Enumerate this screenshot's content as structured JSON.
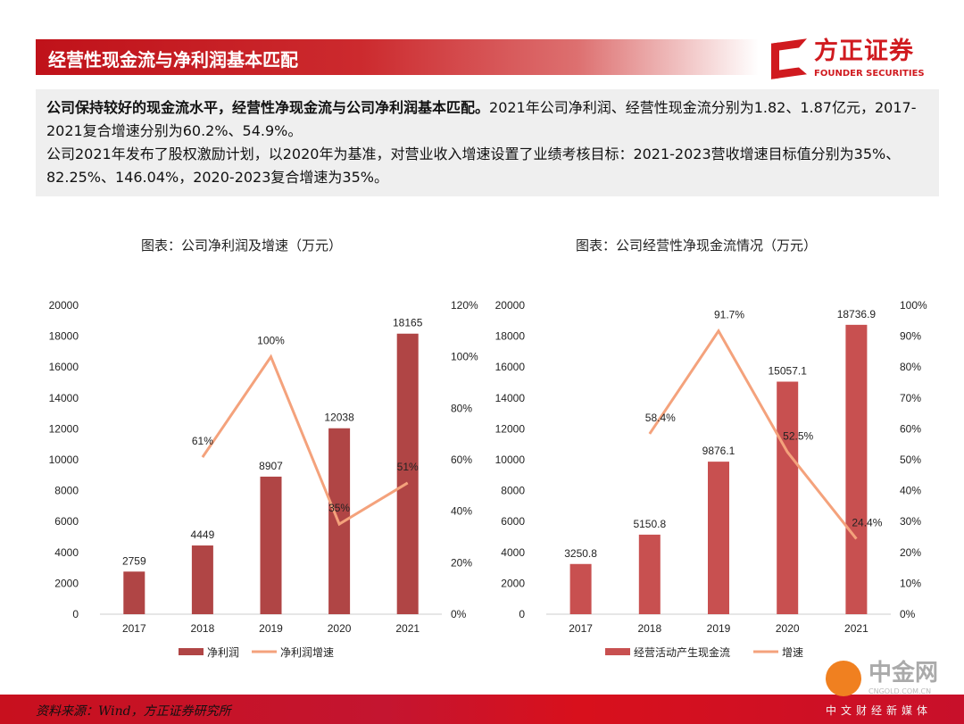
{
  "header": {
    "title": "经营性现金流与净利润基本匹配"
  },
  "logo": {
    "cn": "方正证券",
    "en": "FOUNDER SECURITIES"
  },
  "summary": {
    "p1_bold": "公司保持较好的现金流水平，经营性净现金流与公司净利润基本匹配。",
    "p1_rest": "2021年公司净利润、经营性现金流分别为1.82、1.87亿元，2017-2021复合增速分别为60.2%、54.9%。",
    "p2": "公司2021年发布了股权激励计划，以2020年为基准，对营业收入增速设置了业绩考核目标：2021-2023营收增速目标值分别为35%、82.25%、146.04%，2020-2023复合增速为35%。"
  },
  "chart_data": [
    {
      "type": "bar+line",
      "title": "图表：公司净利润及增速（万元）",
      "categories": [
        "2017",
        "2018",
        "2019",
        "2020",
        "2021"
      ],
      "bar": {
        "name": "净利润",
        "values": [
          2759,
          4449,
          8907,
          12038,
          18165
        ],
        "labels": [
          "2759",
          "4449",
          "8907",
          "12038",
          "18165"
        ],
        "color": "#b04545"
      },
      "line": {
        "name": "净利润增速",
        "values": [
          null,
          61,
          100,
          35,
          51
        ],
        "labels": [
          "",
          "61%",
          "100%",
          "35%",
          "51%"
        ],
        "color": "#f4a27c"
      },
      "ylim": [
        0,
        20000
      ],
      "yticks": [
        "0",
        "2000",
        "4000",
        "6000",
        "8000",
        "10000",
        "12000",
        "14000",
        "16000",
        "18000",
        "20000"
      ],
      "y2lim": [
        0,
        120
      ],
      "y2ticks": [
        "0%",
        "20%",
        "40%",
        "60%",
        "80%",
        "100%",
        "120%"
      ],
      "legend": "bottom"
    },
    {
      "type": "bar+line",
      "title": "图表：公司经营性净现金流情况（万元）",
      "categories": [
        "2017",
        "2018",
        "2019",
        "2020",
        "2021"
      ],
      "bar": {
        "name": "经营活动产生现金流",
        "values": [
          3250.8,
          5150.8,
          9876.1,
          15057.1,
          18736.9
        ],
        "labels": [
          "3250.8",
          "5150.8",
          "9876.1",
          "15057.1",
          "18736.9"
        ],
        "color": "#c85050"
      },
      "line": {
        "name": "增速",
        "values": [
          null,
          58.4,
          91.7,
          52.5,
          24.4
        ],
        "labels": [
          "",
          "58.4%",
          "91.7%",
          "52.5%",
          "24.4%"
        ],
        "color": "#f4a27c"
      },
      "ylim": [
        0,
        20000
      ],
      "yticks": [
        "0",
        "2000",
        "4000",
        "6000",
        "8000",
        "10000",
        "12000",
        "14000",
        "16000",
        "18000",
        "20000"
      ],
      "y2lim": [
        0,
        100
      ],
      "y2ticks": [
        "0%",
        "10%",
        "20%",
        "30%",
        "40%",
        "50%",
        "60%",
        "70%",
        "80%",
        "90%",
        "100%"
      ],
      "legend": "bottom"
    }
  ],
  "footer": {
    "source": "资料来源：Wind，方正证券研究所"
  },
  "watermark": {
    "name": "中金网",
    "url": "CNGOLD.COM.CN",
    "slogan": "中文财经新媒体"
  }
}
